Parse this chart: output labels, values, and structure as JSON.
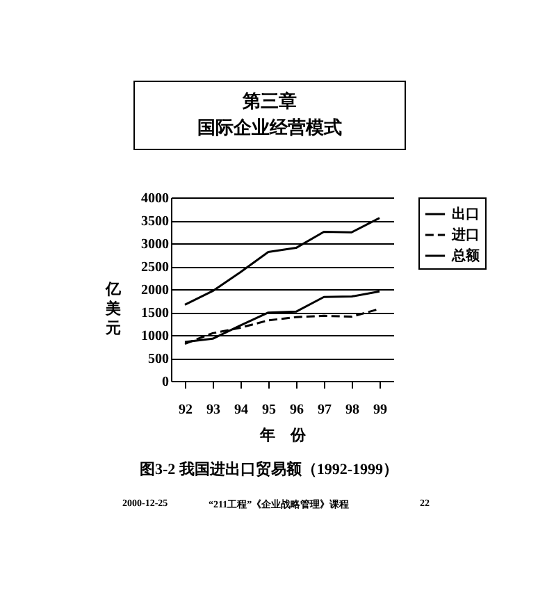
{
  "chart_data": {
    "type": "line",
    "title": "图3-2  我国进出口贸易额（1992-1999）",
    "xlabel": "年　份",
    "ylabel": "亿美元",
    "annotations": [
      "第三章",
      "国际企业经营模式",
      "2000-12-25",
      "“211工程”《企业战略管理》课程",
      "22"
    ],
    "categories": [
      "92",
      "93",
      "94",
      "95",
      "96",
      "97",
      "98",
      "99"
    ],
    "series": [
      {
        "name": "出口",
        "color": "#000000",
        "line_style": "solid",
        "values": [
          850,
          920,
          1210,
          1490,
          1510,
          1830,
          1840,
          1950
        ]
      },
      {
        "name": "进口",
        "color": "#000000",
        "line_style": "dashed",
        "values": [
          810,
          1040,
          1160,
          1320,
          1390,
          1420,
          1400,
          1570
        ]
      },
      {
        "name": "总额",
        "color": "#000000",
        "line_style": "solid",
        "values": [
          1660,
          1960,
          2370,
          2810,
          2900,
          3250,
          3240,
          3550
        ]
      }
    ],
    "ylim": [
      0,
      4000
    ],
    "yticks": [
      0,
      500,
      1000,
      1500,
      2000,
      2500,
      3000,
      3500,
      4000
    ],
    "grid": "y",
    "legend": "right"
  }
}
